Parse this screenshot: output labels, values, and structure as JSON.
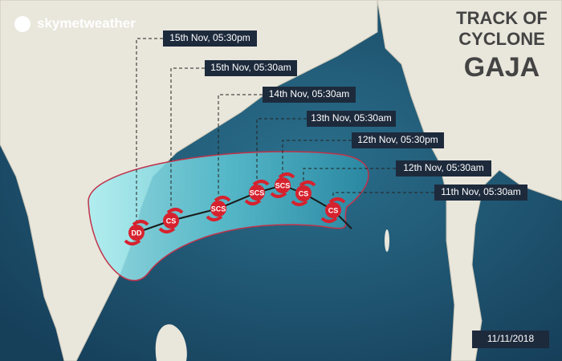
{
  "header": {
    "logo": "skymetweather",
    "title_lines": [
      "TRACK OF",
      "CYCLONE",
      "GAJA"
    ]
  },
  "date": "11/11/2018",
  "track": [
    {
      "time": "15th Nov, 05:30pm",
      "category": "DD"
    },
    {
      "time": "15th Nov, 05:30am",
      "category": "CS"
    },
    {
      "time": "14th Nov, 05:30am",
      "category": "SCS"
    },
    {
      "time": "13th Nov, 05:30am",
      "category": "SCS"
    },
    {
      "time": "12th Nov, 05:30pm",
      "category": "SCS"
    },
    {
      "time": "12th Nov, 05:30am",
      "category": "CS"
    },
    {
      "time": "11th Nov, 05:30am",
      "category": "CS"
    }
  ]
}
